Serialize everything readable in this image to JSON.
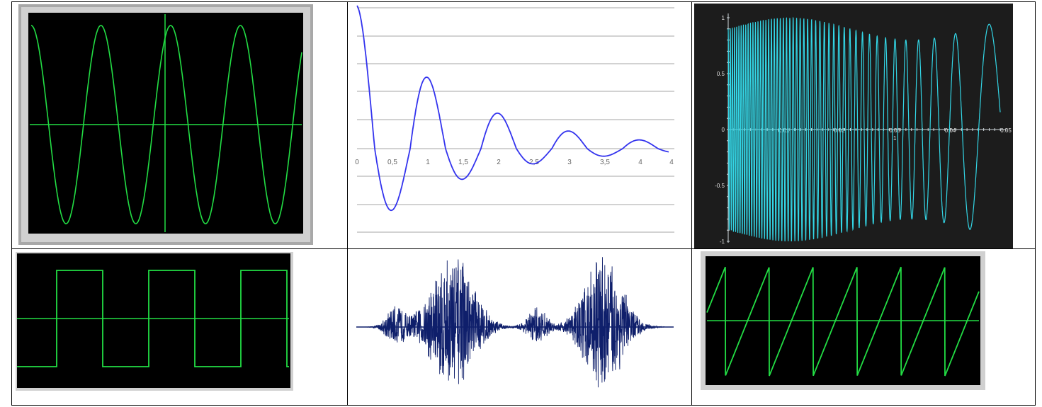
{
  "colors": {
    "scope_green": "#22dd44",
    "scope_bg": "#000000",
    "bezel_outer": "#a8a8a8",
    "bezel_inner": "#d0d0d0",
    "damped_line": "#3333ee",
    "cyan_wave": "#33d6e6",
    "dark_panel": "#1c1c1c",
    "noise_navy": "#0f1f6b"
  },
  "chart_data": [
    {
      "type": "line",
      "panel": "top-left",
      "series": [
        {
          "function": "sine",
          "cycles": 4,
          "amplitude": 1
        }
      ],
      "axes": "crosshair",
      "grid": false
    },
    {
      "type": "line",
      "panel": "top-center",
      "series": [
        {
          "function": "damped-cosine",
          "decay": 0.7,
          "frequency_hz": 1
        }
      ],
      "x_ticks": [
        "0",
        "0,5",
        "1",
        "1,5",
        "2",
        "2,5",
        "3",
        "3,5",
        "4",
        "4"
      ],
      "xlim": [
        0,
        4.4
      ],
      "ylim": [
        -1,
        1.05
      ],
      "grid": true
    },
    {
      "type": "line",
      "panel": "top-right",
      "series": [
        {
          "function": "chirp-down",
          "amplitude": 1
        }
      ],
      "x_ticks": [
        "0.01",
        "0.02",
        "0.03",
        "0.04",
        "0.05"
      ],
      "x_extra_label": "1",
      "y_ticks": [
        "1",
        "0.5",
        "0",
        "-0.5",
        "-1"
      ],
      "xlim": [
        0,
        0.05
      ],
      "ylim": [
        -1,
        1
      ]
    },
    {
      "type": "line",
      "panel": "bottom-left",
      "series": [
        {
          "function": "square",
          "cycles": 3,
          "amplitude": 1
        }
      ],
      "axes": "horizontal-center"
    },
    {
      "type": "line",
      "panel": "bottom-center",
      "series": [
        {
          "function": "speech-noise",
          "bursts": 2
        }
      ]
    },
    {
      "type": "line",
      "panel": "bottom-right",
      "series": [
        {
          "function": "sawtooth",
          "cycles": 6,
          "amplitude": 1
        }
      ],
      "axes": "horizontal-center"
    }
  ]
}
